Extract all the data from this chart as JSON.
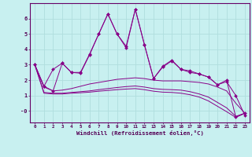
{
  "xlabel": "Windchill (Refroidissement éolien,°C)",
  "background_color": "#c8f0f0",
  "grid_color": "#b0dede",
  "line_color": "#880088",
  "x_data": [
    0,
    1,
    2,
    3,
    4,
    5,
    6,
    7,
    8,
    9,
    10,
    11,
    12,
    13,
    14,
    15,
    16,
    17,
    18,
    19,
    20,
    21,
    22,
    23
  ],
  "series1": [
    3.0,
    1.6,
    2.7,
    3.1,
    2.5,
    2.5,
    3.7,
    5.0,
    6.3,
    5.0,
    4.2,
    6.6,
    4.3,
    2.1,
    2.9,
    3.3,
    2.7,
    2.6,
    2.4,
    2.2,
    1.7,
    2.0,
    -0.4,
    -0.15
  ],
  "series2": [
    3.0,
    1.6,
    1.3,
    3.1,
    2.5,
    2.45,
    3.65,
    5.0,
    6.3,
    5.0,
    4.1,
    6.6,
    4.3,
    2.1,
    2.85,
    3.25,
    2.7,
    2.5,
    2.4,
    2.2,
    1.7,
    1.9,
    1.0,
    -0.3
  ],
  "series3": [
    3.0,
    1.55,
    1.3,
    1.35,
    1.45,
    1.6,
    1.75,
    1.85,
    1.95,
    2.05,
    2.1,
    2.15,
    2.1,
    2.0,
    1.95,
    1.95,
    1.95,
    1.9,
    1.85,
    1.75,
    1.55,
    1.3,
    0.5,
    -0.15
  ],
  "series4": [
    3.0,
    1.2,
    1.15,
    1.15,
    1.2,
    1.25,
    1.3,
    1.38,
    1.45,
    1.52,
    1.58,
    1.62,
    1.55,
    1.45,
    1.4,
    1.38,
    1.35,
    1.25,
    1.1,
    0.9,
    0.55,
    0.2,
    -0.35,
    -0.15
  ],
  "series5": [
    3.0,
    1.15,
    1.1,
    1.1,
    1.15,
    1.18,
    1.22,
    1.28,
    1.33,
    1.38,
    1.42,
    1.45,
    1.38,
    1.28,
    1.22,
    1.2,
    1.15,
    1.05,
    0.9,
    0.65,
    0.3,
    -0.05,
    -0.42,
    -0.15
  ],
  "ylim": [
    -0.75,
    7.0
  ],
  "xlim": [
    -0.5,
    23.5
  ],
  "yticks": [
    0,
    1,
    2,
    3,
    4,
    5,
    6
  ],
  "ytick_labels": [
    "-0",
    "1",
    "2",
    "3",
    "4",
    "5",
    "6"
  ],
  "xticks": [
    0,
    1,
    2,
    3,
    4,
    5,
    6,
    7,
    8,
    9,
    10,
    11,
    12,
    13,
    14,
    15,
    16,
    17,
    18,
    19,
    20,
    21,
    22,
    23
  ]
}
